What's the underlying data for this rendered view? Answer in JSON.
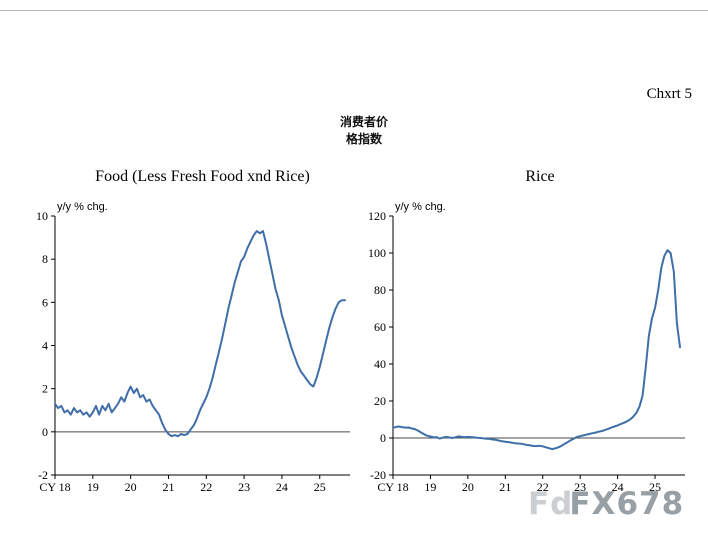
{
  "page": {
    "corner_label": "Chxrt 5",
    "heading_line1": "消费者价",
    "heading_line2": "格指数",
    "watermark_prefix": "Fd",
    "watermark": "FX678"
  },
  "chart_data": [
    {
      "type": "line",
      "title": "Food (Less Fresh Food xnd Rice)",
      "unit_label": "y/y % chg.",
      "x_start_year": 2018,
      "x_end": 2025.8,
      "points_per_year": 12,
      "ylim": [
        -2,
        10
      ],
      "yticks": [
        10,
        8,
        6,
        4,
        2,
        0,
        -2
      ],
      "xtick_labels": [
        "CY 18",
        "19",
        "20",
        "21",
        "22",
        "23",
        "24",
        "25"
      ],
      "zero_line": true,
      "grid": false,
      "legend": "none",
      "line_color": "#3f6ea8",
      "values": [
        1.3,
        1.1,
        1.2,
        0.9,
        1.0,
        0.8,
        1.1,
        0.9,
        1.0,
        0.8,
        0.9,
        0.7,
        0.9,
        1.2,
        0.8,
        1.2,
        1.0,
        1.3,
        0.9,
        1.1,
        1.3,
        1.6,
        1.4,
        1.8,
        2.1,
        1.8,
        2.0,
        1.6,
        1.7,
        1.4,
        1.5,
        1.2,
        1.0,
        0.8,
        0.4,
        0.1,
        -0.1,
        -0.2,
        -0.15,
        -0.2,
        -0.1,
        -0.15,
        -0.1,
        0.1,
        0.3,
        0.6,
        1.0,
        1.3,
        1.6,
        2.0,
        2.5,
        3.1,
        3.7,
        4.3,
        5.0,
        5.7,
        6.3,
        6.9,
        7.4,
        7.9,
        8.1,
        8.5,
        8.8,
        9.1,
        9.3,
        9.2,
        9.3,
        8.7,
        8.0,
        7.3,
        6.6,
        6.1,
        5.4,
        4.9,
        4.4,
        3.9,
        3.5,
        3.1,
        2.8,
        2.6,
        2.4,
        2.2,
        2.1,
        2.5,
        3.0,
        3.6,
        4.2,
        4.8,
        5.3,
        5.7,
        6.0,
        6.1,
        6.1
      ]
    },
    {
      "type": "line",
      "title": "Rice",
      "unit_label": "y/y % chg.",
      "x_start_year": 2018,
      "x_end": 2025.8,
      "points_per_year": 12,
      "ylim": [
        -20,
        120
      ],
      "yticks": [
        120,
        100,
        80,
        60,
        40,
        20,
        0,
        -20
      ],
      "xtick_labels": [
        "CY 18",
        "19",
        "20",
        "21",
        "22",
        "23",
        "24",
        "25"
      ],
      "zero_line": true,
      "grid": false,
      "legend": "none",
      "line_color": "#3f6ea8",
      "values": [
        5.5,
        6.0,
        6.2,
        5.8,
        5.6,
        5.7,
        5.2,
        4.8,
        4.0,
        3.0,
        2.0,
        1.2,
        0.8,
        0.3,
        0.5,
        -0.3,
        0.2,
        0.6,
        0.3,
        0.0,
        0.4,
        0.9,
        0.6,
        0.4,
        0.6,
        0.5,
        0.3,
        0.1,
        0.0,
        -0.2,
        -0.4,
        -0.5,
        -0.8,
        -1.0,
        -1.4,
        -1.8,
        -2.0,
        -2.2,
        -2.5,
        -2.8,
        -3.0,
        -3.1,
        -3.4,
        -3.8,
        -4.0,
        -4.3,
        -4.4,
        -4.2,
        -4.5,
        -5.0,
        -5.5,
        -6.0,
        -5.6,
        -5.0,
        -4.2,
        -3.2,
        -2.2,
        -1.2,
        -0.3,
        0.6,
        1.0,
        1.4,
        1.8,
        2.2,
        2.6,
        3.0,
        3.4,
        3.8,
        4.4,
        5.0,
        5.6,
        6.2,
        6.8,
        7.5,
        8.2,
        9.0,
        10.0,
        11.5,
        13.5,
        17.0,
        23.0,
        38.0,
        55.0,
        64.5,
        70.5,
        80.0,
        92.0,
        98.5,
        101.5,
        100.0,
        90.0,
        62.0,
        49.0
      ]
    }
  ]
}
